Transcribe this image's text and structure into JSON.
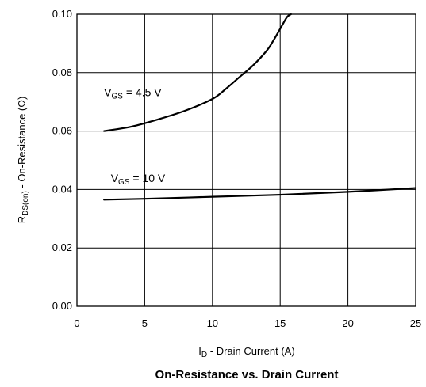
{
  "chart_data": {
    "type": "line",
    "title": "On-Resistance vs. Drain Current",
    "xlabel": {
      "main": "I",
      "sub": "D",
      "rest": " - Drain Current (A)"
    },
    "ylabel": {
      "main": "R",
      "sub": "DS(on)",
      "rest": " - On-Resistance (Ω)"
    },
    "xlim": [
      0,
      25
    ],
    "ylim": [
      0.0,
      0.1
    ],
    "xticks": [
      0,
      5,
      10,
      15,
      20,
      25
    ],
    "yticks": [
      0.0,
      0.02,
      0.04,
      0.06,
      0.08,
      0.1
    ],
    "xtick_labels": [
      "0",
      "5",
      "10",
      "15",
      "20",
      "25"
    ],
    "ytick_labels": [
      "0.00",
      "0.02",
      "0.04",
      "0.06",
      "0.08",
      "0.10"
    ],
    "grid": true,
    "series": [
      {
        "label": {
          "main": "V",
          "sub": "GS",
          "rest": " = 4.5 V"
        },
        "label_anchor": [
          2,
          0.072
        ],
        "x": [
          2,
          4,
          6,
          8,
          10,
          11,
          12,
          13,
          14,
          14.5,
          15,
          15.5,
          15.8
        ],
        "y": [
          0.06,
          0.0615,
          0.064,
          0.067,
          0.071,
          0.0745,
          0.0785,
          0.0825,
          0.0875,
          0.091,
          0.095,
          0.099,
          0.1
        ]
      },
      {
        "label": {
          "main": "V",
          "sub": "GS",
          "rest": " = 10 V"
        },
        "label_anchor": [
          2.5,
          0.0425
        ],
        "x": [
          2,
          5,
          10,
          15,
          20,
          25
        ],
        "y": [
          0.0365,
          0.0368,
          0.0375,
          0.0382,
          0.0392,
          0.0405
        ]
      }
    ]
  }
}
